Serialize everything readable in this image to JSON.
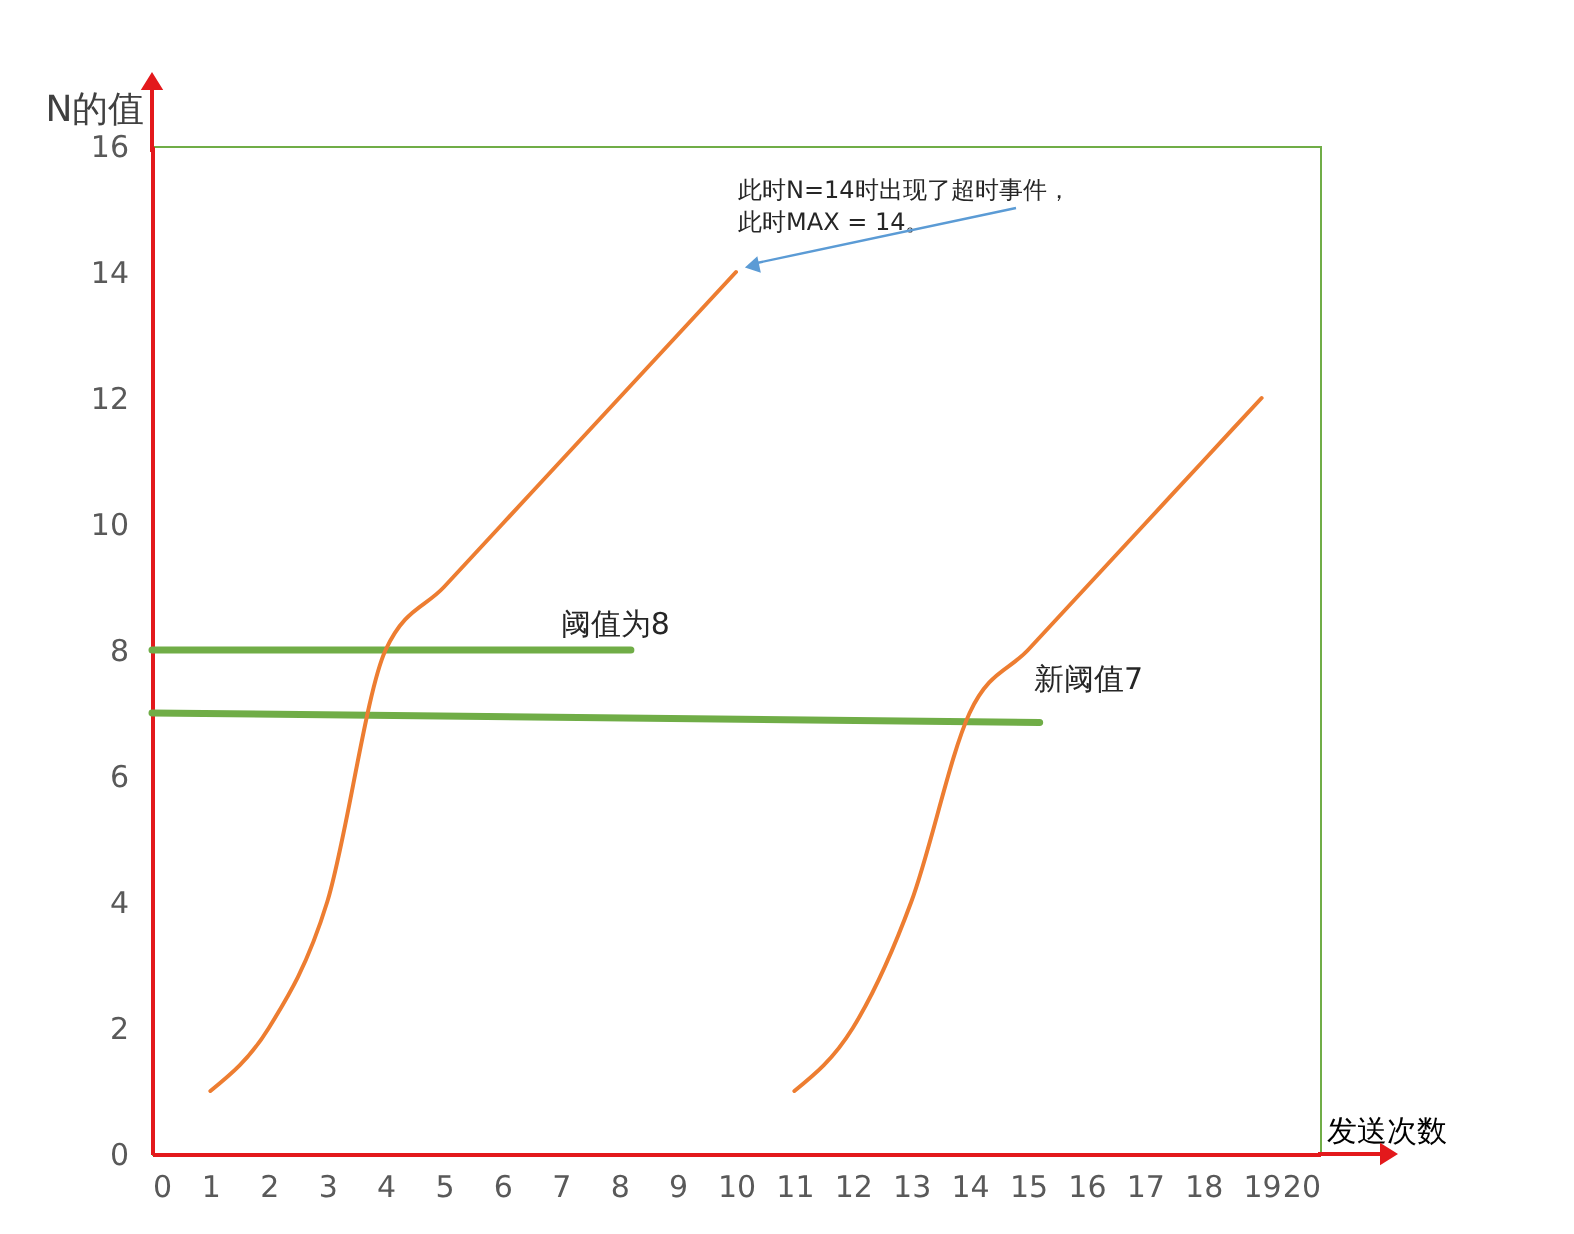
{
  "chart_data": {
    "type": "line",
    "xlabel": "发送次数",
    "ylabel": "N的值",
    "xlim": [
      0,
      20
    ],
    "xticks": [
      0,
      1,
      2,
      3,
      4,
      5,
      6,
      7,
      8,
      9,
      10,
      11,
      12,
      13,
      14,
      15,
      16,
      17,
      18,
      19,
      20
    ],
    "ylim": [
      0,
      16
    ],
    "yticks": [
      0,
      2,
      4,
      6,
      8,
      10,
      12,
      14,
      16
    ],
    "series": [
      {
        "color": "#70ad47",
        "x": [
          0,
          8.2
        ],
        "values": [
          8,
          8
        ]
      },
      {
        "color": "#70ad47",
        "x": [
          0,
          15.2
        ],
        "values": [
          7,
          6.85
        ]
      },
      {
        "color": "#ed7d31",
        "x": [
          1,
          2,
          3,
          4,
          5,
          6,
          7,
          8,
          9,
          10
        ],
        "values": [
          1,
          2,
          4,
          8,
          9,
          10,
          11,
          12,
          13,
          14
        ]
      },
      {
        "color": "#ed7d31",
        "x": [
          11,
          12,
          13,
          14,
          15,
          16,
          17,
          18,
          19
        ],
        "values": [
          1,
          2,
          4,
          7,
          8,
          9,
          10,
          11,
          12
        ]
      }
    ],
    "annotations": [
      {
        "text": "此时N=14时出现了超时事件，此时MAX = 14。",
        "x": 10,
        "y": 14
      },
      {
        "text": "阈值为8",
        "x": 7,
        "y": 8
      },
      {
        "text": "新阈值7",
        "x": 15,
        "y": 7
      }
    ]
  }
}
